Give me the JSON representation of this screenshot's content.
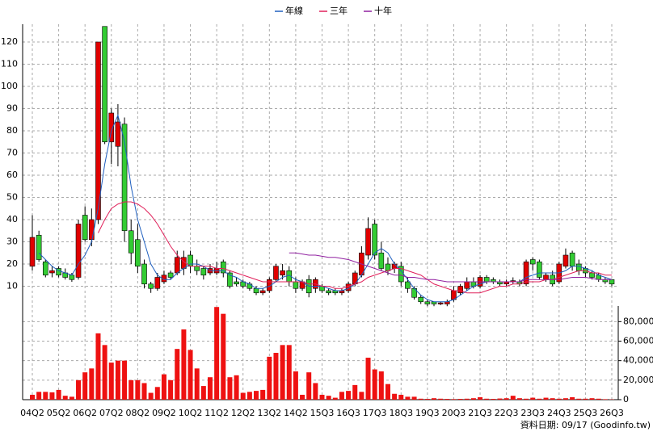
{
  "chart_data": [
    {
      "type": "candlestick",
      "categories": [
        "04Q2",
        null,
        null,
        null,
        "05Q2",
        null,
        null,
        null,
        "06Q2",
        null,
        null,
        null,
        "07Q2",
        null,
        null,
        null,
        "08Q2",
        null,
        null,
        null,
        "09Q2",
        null,
        null,
        null,
        "10Q2",
        null,
        null,
        null,
        "11Q2",
        null,
        null,
        null,
        "12Q2",
        null,
        null,
        null,
        "13Q2",
        null,
        null,
        null,
        "14Q2",
        null,
        null,
        null,
        "15Q3",
        null,
        null,
        null,
        "16Q3",
        null,
        null,
        null,
        "17Q3",
        null,
        null,
        null,
        "18Q3",
        null,
        null,
        null,
        "19Q3",
        null,
        null,
        null,
        "20Q3",
        null,
        null,
        null,
        "21Q3",
        null,
        null,
        null,
        "22Q3",
        null,
        null,
        null,
        "23Q3",
        null,
        null,
        null,
        "24Q3",
        null,
        null,
        null,
        "25Q3",
        null,
        null,
        null,
        "26Q3"
      ],
      "open": [
        19,
        33,
        21,
        16,
        18,
        16,
        15,
        14,
        42,
        31,
        40,
        127,
        75,
        73,
        83,
        35,
        31,
        20,
        11,
        9,
        12,
        16,
        16,
        18,
        24,
        19,
        18,
        16,
        16,
        21,
        16,
        12,
        12,
        11,
        9,
        7,
        8,
        13,
        15,
        17,
        12,
        9,
        13,
        9,
        10,
        8,
        8,
        7,
        8,
        11,
        15,
        24,
        38,
        25,
        20,
        18,
        19,
        12,
        9,
        5,
        3,
        3,
        2,
        2,
        4,
        7,
        9,
        12,
        10,
        14,
        13,
        12,
        11,
        12,
        12,
        11,
        22,
        21,
        13,
        15,
        12,
        19,
        25,
        20,
        18,
        16,
        15,
        13,
        13
      ],
      "high": [
        42,
        35,
        22,
        19,
        19,
        18,
        16,
        40,
        46,
        45,
        120,
        127,
        90,
        92,
        86,
        40,
        38,
        22,
        12,
        16,
        17,
        17,
        26,
        26,
        26,
        22,
        19,
        20,
        21,
        22,
        17,
        14,
        13,
        12,
        10,
        9,
        14,
        20,
        20,
        19,
        14,
        13,
        15,
        14,
        11,
        9,
        9,
        9,
        12,
        17,
        28,
        41,
        40,
        30,
        23,
        21,
        21,
        14,
        10,
        6,
        4,
        3,
        3,
        4,
        10,
        11,
        14,
        14,
        15,
        15,
        14,
        13,
        13,
        14,
        13,
        22,
        23,
        22,
        16,
        17,
        21,
        27,
        26,
        22,
        19,
        17,
        16,
        14,
        13
      ],
      "low": [
        17,
        21,
        14,
        14,
        14,
        13,
        12,
        13,
        30,
        28,
        38,
        74,
        65,
        64,
        30,
        20,
        16,
        9,
        7,
        8,
        11,
        13,
        15,
        15,
        16,
        15,
        13,
        15,
        15,
        14,
        9,
        10,
        9,
        8,
        6,
        6,
        7,
        12,
        13,
        10,
        7,
        8,
        5,
        7,
        7,
        6,
        6,
        6,
        7,
        10,
        14,
        22,
        22,
        17,
        15,
        16,
        10,
        7,
        4,
        2,
        1,
        1,
        1.5,
        1,
        3,
        6,
        8,
        9,
        9,
        11,
        11,
        10,
        10,
        11,
        10,
        10,
        17,
        13,
        12,
        10,
        11,
        18,
        17,
        15,
        14,
        13,
        12,
        11,
        10
      ],
      "close": [
        32,
        22,
        15,
        17,
        15,
        14,
        13,
        38,
        31,
        40,
        120,
        75,
        88,
        84,
        35,
        25,
        19,
        11,
        9,
        14,
        15,
        14,
        23,
        23,
        19,
        17,
        15,
        18,
        18,
        16,
        10,
        11,
        10,
        9,
        7,
        8,
        13,
        19,
        17,
        12,
        9,
        12,
        7,
        13,
        8,
        7,
        7,
        8,
        11,
        16,
        25,
        36,
        24,
        18,
        17,
        20,
        12,
        9,
        5,
        3,
        2,
        2,
        2.5,
        3,
        8,
        10,
        12,
        10,
        14,
        12,
        12,
        11,
        12,
        12.5,
        11,
        21,
        20,
        14,
        15,
        11,
        20,
        24,
        19,
        17,
        16,
        14,
        13,
        12,
        11
      ],
      "up_color": "#e00000",
      "down_color": "#33cc33",
      "series": [
        {
          "name": "年線",
          "color": "#1f5fbf",
          "values": [
            null,
            25,
            22,
            19,
            17,
            16,
            15,
            20,
            24,
            30,
            45,
            65,
            80,
            87,
            75,
            55,
            40,
            30,
            20,
            15,
            13,
            13,
            16,
            18,
            20,
            20,
            19,
            17,
            17,
            17,
            15,
            14,
            12,
            11,
            9,
            9,
            10,
            12,
            14,
            15,
            13,
            12,
            10,
            10,
            10,
            9,
            8,
            8,
            9,
            11,
            15,
            20,
            25,
            27,
            25,
            20,
            17,
            13,
            9,
            6,
            4,
            3,
            3,
            3,
            4,
            6,
            8,
            10,
            11,
            12,
            12,
            12,
            12,
            12,
            12,
            14,
            15,
            16,
            16,
            16,
            16,
            17,
            19,
            19,
            18,
            17,
            15,
            14,
            13
          ]
        },
        {
          "name": "三年",
          "color": "#e0205a",
          "values": [
            null,
            null,
            null,
            null,
            null,
            null,
            null,
            null,
            null,
            null,
            34,
            40,
            45,
            47,
            48,
            48,
            47,
            45,
            42,
            38,
            33,
            28,
            24,
            21,
            19,
            19,
            19,
            19,
            18,
            18,
            17,
            16,
            15,
            14,
            13,
            12,
            12,
            12,
            12,
            12,
            12,
            12,
            11,
            11,
            10,
            10,
            9,
            9,
            10,
            11,
            12,
            14,
            15,
            16,
            17,
            18,
            18,
            17,
            16,
            15,
            13,
            11,
            10,
            9,
            8,
            8,
            7,
            7,
            7,
            8,
            9,
            10,
            10,
            11,
            11,
            12,
            12,
            12,
            13,
            13,
            14,
            15,
            16,
            17,
            17,
            16,
            16,
            15,
            15
          ]
        },
        {
          "name": "十年",
          "color": "#9020a0",
          "values": [
            null,
            null,
            null,
            null,
            null,
            null,
            null,
            null,
            null,
            null,
            null,
            null,
            null,
            null,
            null,
            null,
            null,
            null,
            null,
            null,
            null,
            null,
            null,
            null,
            null,
            null,
            null,
            null,
            null,
            null,
            null,
            null,
            null,
            null,
            null,
            null,
            null,
            null,
            null,
            25,
            25,
            24.5,
            24,
            24,
            23.5,
            23,
            23,
            22.5,
            22,
            21,
            20,
            19,
            18,
            17,
            16,
            15,
            15,
            14,
            14,
            13.5,
            13,
            13,
            12.5,
            12,
            12,
            12,
            12,
            12,
            12,
            12,
            12,
            12,
            12,
            12,
            12,
            13,
            13,
            13,
            13,
            13,
            13,
            13.5,
            14,
            14,
            14,
            13.5,
            13,
            13,
            13
          ]
        }
      ],
      "ylim": [
        0,
        128
      ],
      "yticks": [
        10,
        20,
        30,
        40,
        50,
        60,
        70,
        80,
        90,
        100,
        110,
        120
      ],
      "grid": true
    },
    {
      "type": "bar",
      "color": "#ee1111",
      "values": [
        5000,
        8000,
        8000,
        7500,
        10000,
        4000,
        3000,
        20000,
        28000,
        32000,
        68000,
        56000,
        38000,
        40000,
        40000,
        20000,
        20000,
        17000,
        7000,
        13000,
        26000,
        20000,
        52000,
        72000,
        51000,
        32000,
        14000,
        23000,
        95000,
        88000,
        23000,
        25000,
        7000,
        8000,
        9000,
        10000,
        44000,
        48000,
        56000,
        56000,
        29000,
        5000,
        28000,
        17000,
        5000,
        4000,
        2000,
        8000,
        9000,
        15000,
        8000,
        43000,
        31000,
        29000,
        16000,
        6000,
        5000,
        3000,
        3000,
        1000,
        800,
        1500,
        1000,
        800,
        600,
        800,
        1000,
        1500,
        2500,
        1000,
        800,
        1200,
        1500,
        4000,
        1500,
        1000,
        2000,
        1000,
        2000,
        1500,
        1000,
        1500,
        2500,
        1000,
        1000,
        1500,
        1000,
        500,
        300
      ],
      "ylim": [
        0,
        96000
      ],
      "yticks": [
        0,
        {
          "value": 20000,
          "label": "20,000"
        },
        {
          "value": 40000,
          "label": "40,000"
        },
        {
          "value": 60000,
          "label": "60,000"
        },
        {
          "value": 80000,
          "label": "80,000"
        }
      ],
      "axis": "right",
      "grid": true
    },
    {
      "source": "資料日期: 09/17  (Goodinfo.tw)"
    }
  ]
}
